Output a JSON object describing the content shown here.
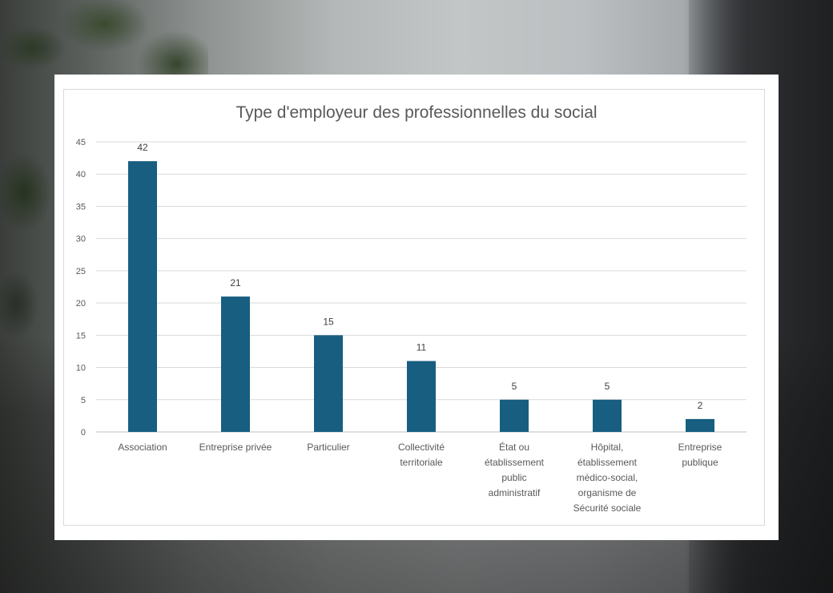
{
  "colors": {
    "bar": "#175e81",
    "grid": "#d9d9d9",
    "axis": "#bfbfbf"
  },
  "chart_data": {
    "type": "bar",
    "title": "Type d'employeur des professionnelles du social",
    "xlabel": "",
    "ylabel": "",
    "ylim": [
      0,
      45
    ],
    "yticks": [
      0,
      5,
      10,
      15,
      20,
      25,
      30,
      35,
      40,
      45
    ],
    "grid": true,
    "legend": "none",
    "categories": [
      [
        "Association"
      ],
      [
        "Entreprise privée"
      ],
      [
        "Particulier"
      ],
      [
        "Collectivité",
        "territoriale"
      ],
      [
        "État ou",
        "établissement",
        "public",
        "administratif"
      ],
      [
        "Hôpital,",
        "établissement",
        "médico-social,",
        "organisme de",
        "Sécurité sociale"
      ],
      [
        "Entreprise",
        "publique"
      ]
    ],
    "values": [
      42,
      21,
      15,
      11,
      5,
      5,
      2
    ]
  }
}
